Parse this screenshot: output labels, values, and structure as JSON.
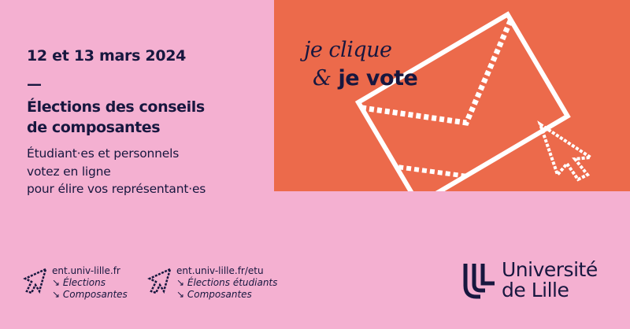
{
  "event": {
    "date": "12 et 13 mars 2024",
    "dash": "—",
    "title_line1": "Élections des conseils",
    "title_line2": "de composantes",
    "subtitle_line1": "Étudiant·es et personnels",
    "subtitle_line2": "votez en ligne",
    "subtitle_line3": "pour élire vos représentant·es"
  },
  "slogan": {
    "line1": "je clique",
    "amp": "&",
    "line2": "je vote"
  },
  "links": [
    {
      "url": "ent.univ-lille.fr",
      "path1": "↘ Élections",
      "path2": "↘ Composantes",
      "icon": "cursor-click-icon"
    },
    {
      "url": "ent.univ-lille.fr/etu",
      "path1": "↘ Élections étudiants",
      "path2": "↘ Composantes",
      "icon": "cursor-click-icon"
    }
  ],
  "logo": {
    "line1": "Université",
    "line2": "de Lille"
  },
  "colors": {
    "pink": "#f4b0d1",
    "orange": "#ec6a4b",
    "navy": "#17173f"
  }
}
